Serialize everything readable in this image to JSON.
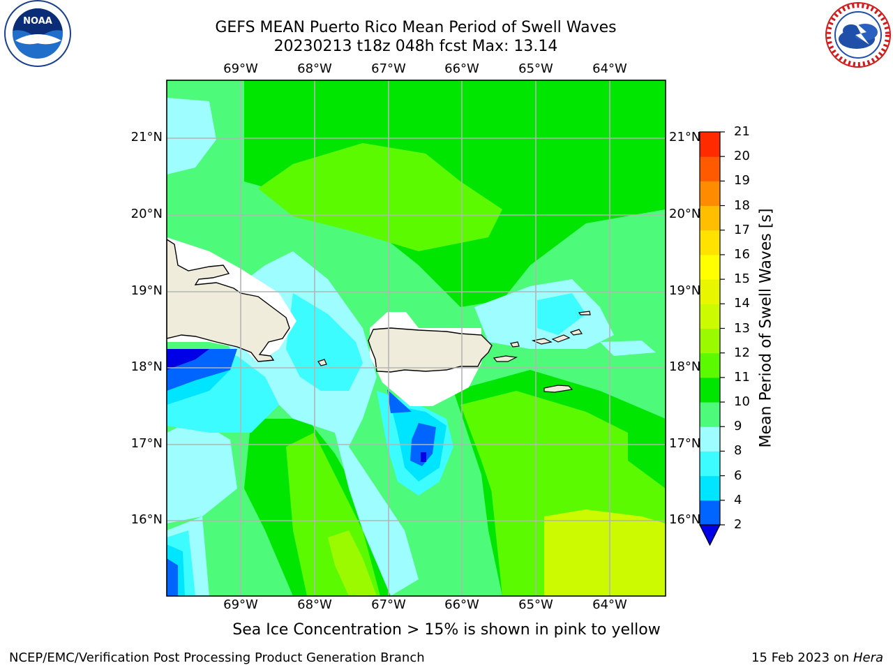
{
  "header": {
    "title_line1": "GEFS MEAN Puerto Rico Mean Period of Swell Waves",
    "title_line2": "20230213 t18z 048h fcst   Max: 13.14"
  },
  "axes": {
    "lon_labels": [
      "69°W",
      "68°W",
      "67°W",
      "66°W",
      "65°W",
      "64°W"
    ],
    "lat_labels": [
      "21°N",
      "20°N",
      "19°N",
      "18°N",
      "17°N",
      "16°N"
    ]
  },
  "colorbar": {
    "title": "Mean Period of Swell Waves [s]",
    "levels": [
      "2",
      "4",
      "6",
      "8",
      "9",
      "10",
      "11",
      "12",
      "13",
      "14",
      "15",
      "16",
      "17",
      "18",
      "19",
      "20",
      "21"
    ],
    "colors": [
      "#0064ff",
      "#00e5ff",
      "#3dfcff",
      "#9dfdff",
      "#4dfa7a",
      "#00e600",
      "#5cfa00",
      "#9bf900",
      "#ccfa00",
      "#e8f700",
      "#ffff00",
      "#ffe200",
      "#ffbf00",
      "#ff8c00",
      "#ff5a00",
      "#ff2a00",
      "#ff0000"
    ],
    "extend_color": "#0000e6"
  },
  "map_colors": {
    "land": "#efecdc",
    "no_data": "#ffffff",
    "grid": "#b4b4b4",
    "coast": "#000000"
  },
  "logos": {
    "left": "noaa-logo",
    "right": "nws-logo"
  },
  "note": "Sea Ice Concentration > 15% is shown in pink to yellow",
  "footer": {
    "left": "NCEP/EMC/Verification Post Processing Product Generation Branch",
    "date": "15 Feb 2023 on ",
    "machine": "Hera"
  }
}
